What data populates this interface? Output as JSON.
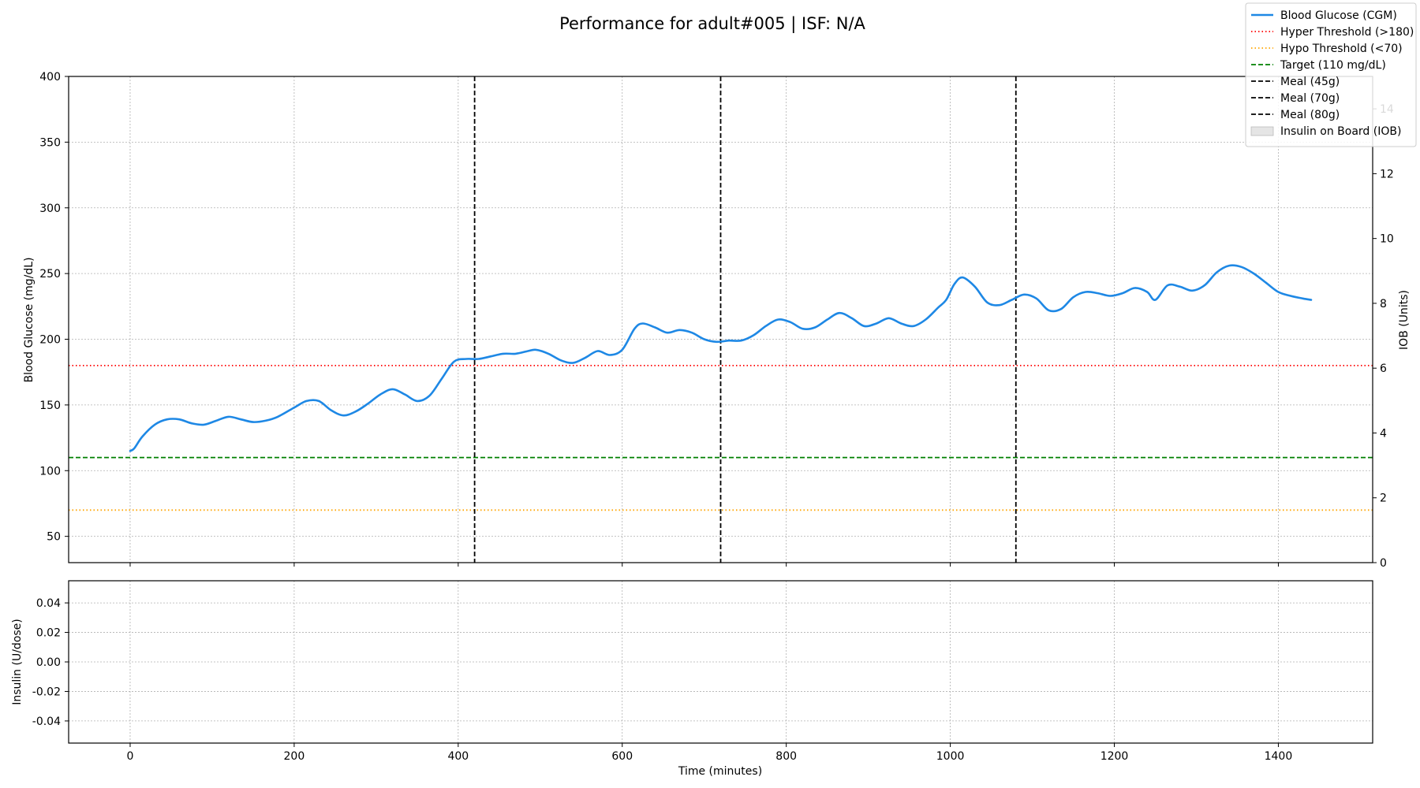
{
  "chart_data": {
    "type": "line",
    "title": "Performance for adult#005 | ISF: N/A",
    "xlabel": "Time (minutes)",
    "x_ticks": [
      0,
      200,
      400,
      600,
      800,
      1000,
      1200,
      1400
    ],
    "xlim": [
      -75,
      1515
    ],
    "top_panel": {
      "ylabel": "Blood Glucose (mg/dL)",
      "ylim": [
        30,
        400
      ],
      "y_ticks": [
        50,
        100,
        150,
        200,
        250,
        300,
        350,
        400
      ],
      "y2label": "IOB (Units)",
      "y2lim": [
        0,
        15
      ],
      "y2_ticks": [
        0,
        2,
        4,
        6,
        8,
        10,
        12,
        14
      ],
      "grid": true
    },
    "bottom_panel": {
      "ylabel": "Insulin (U/dose)",
      "ylim": [
        -0.055,
        0.055
      ],
      "y_ticks": [
        "0.04",
        "0.02",
        "0.00",
        "-0.02",
        "-0.04"
      ],
      "y_tick_values": [
        0.04,
        0.02,
        0.0,
        -0.02,
        -0.04
      ],
      "grid": true
    },
    "series": [
      {
        "name": "Blood Glucose (CGM)",
        "color": "#1e88e5",
        "style": "solid",
        "x": [
          0,
          5,
          15,
          30,
          45,
          60,
          75,
          90,
          105,
          120,
          135,
          150,
          165,
          180,
          200,
          215,
          230,
          245,
          260,
          275,
          290,
          305,
          320,
          335,
          350,
          365,
          380,
          395,
          410,
          425,
          440,
          455,
          470,
          485,
          495,
          510,
          525,
          540,
          555,
          570,
          585,
          600,
          615,
          625,
          640,
          655,
          670,
          685,
          700,
          715,
          730,
          745,
          760,
          775,
          790,
          805,
          820,
          835,
          850,
          865,
          880,
          895,
          910,
          925,
          940,
          955,
          970,
          985,
          995,
          1005,
          1015,
          1030,
          1045,
          1060,
          1075,
          1090,
          1105,
          1120,
          1135,
          1150,
          1165,
          1180,
          1195,
          1210,
          1225,
          1240,
          1250,
          1265,
          1280,
          1295,
          1310,
          1325,
          1340,
          1355,
          1370,
          1385,
          1400,
          1415,
          1430,
          1440
        ],
        "y": [
          115,
          117,
          126,
          135,
          139,
          139,
          136,
          135,
          138,
          141,
          139,
          137,
          138,
          141,
          148,
          153,
          153,
          146,
          142,
          145,
          151,
          158,
          162,
          158,
          153,
          157,
          170,
          183,
          185,
          185,
          187,
          189,
          189,
          191,
          192,
          189,
          184,
          182,
          186,
          191,
          188,
          192,
          208,
          212,
          209,
          205,
          207,
          205,
          200,
          198,
          199,
          199,
          203,
          210,
          215,
          213,
          208,
          209,
          215,
          220,
          216,
          210,
          212,
          216,
          212,
          210,
          215,
          224,
          230,
          242,
          247,
          240,
          228,
          226,
          230,
          234,
          231,
          222,
          223,
          232,
          236,
          235,
          233,
          235,
          239,
          236,
          230,
          241,
          240,
          237,
          241,
          251,
          256,
          255,
          250,
          243,
          236,
          233,
          231,
          230
        ]
      },
      {
        "name": "Hyper Threshold (>180)",
        "color": "#ff0000",
        "style": "dotted",
        "y": 180
      },
      {
        "name": "Hypo Threshold (<70)",
        "color": "#ffa500",
        "style": "dotted",
        "y": 70
      },
      {
        "name": "Target (110 mg/dL)",
        "color": "#008000",
        "style": "dashed",
        "y": 110
      },
      {
        "name": "Meal (45g)",
        "color": "#000000",
        "style": "dashed",
        "x": 420
      },
      {
        "name": "Meal (70g)",
        "color": "#000000",
        "style": "dashed",
        "x": 720
      },
      {
        "name": "Meal (80g)",
        "color": "#000000",
        "style": "dashed",
        "x": 1080
      },
      {
        "name": "Insulin on Board (IOB)",
        "color": "#d3d3d3",
        "style": "area",
        "values": []
      }
    ],
    "legend": {
      "placement": "top-right",
      "entries": [
        {
          "label": "Blood Glucose (CGM)",
          "color": "#1e88e5",
          "style": "solid"
        },
        {
          "label": "Hyper Threshold (>180)",
          "color": "#ff0000",
          "style": "dotted"
        },
        {
          "label": "Hypo Threshold (<70)",
          "color": "#ffa500",
          "style": "dotted"
        },
        {
          "label": "Target (110 mg/dL)",
          "color": "#008000",
          "style": "dashed"
        },
        {
          "label": "Meal (45g)",
          "color": "#000000",
          "style": "dashed"
        },
        {
          "label": "Meal (70g)",
          "color": "#000000",
          "style": "dashed"
        },
        {
          "label": "Meal (80g)",
          "color": "#000000",
          "style": "dashed"
        },
        {
          "label": "Insulin on Board (IOB)",
          "color": "#d3d3d3",
          "style": "patch"
        }
      ]
    }
  }
}
